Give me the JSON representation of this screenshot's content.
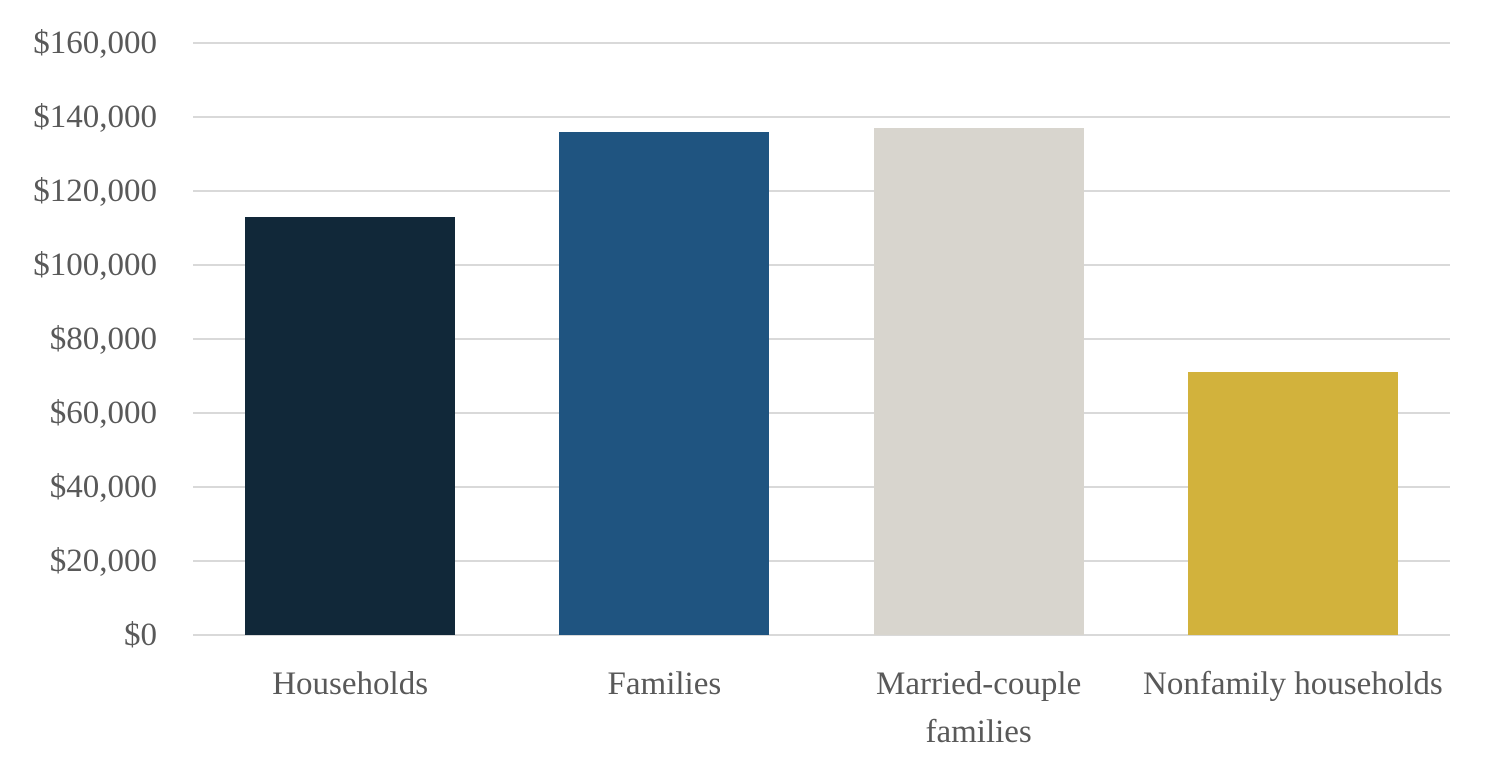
{
  "chart_data": {
    "type": "bar",
    "title": "",
    "xlabel": "",
    "ylabel": "",
    "categories": [
      "Households",
      "Families",
      "Married-couple families",
      "Nonfamily households"
    ],
    "values": [
      113000,
      136000,
      137000,
      71000
    ],
    "ylim": [
      0,
      160000
    ],
    "y_tick_step": 20000,
    "y_tick_labels": [
      "$0",
      "$20,000",
      "$40,000",
      "$60,000",
      "$80,000",
      "$100,000",
      "$120,000",
      "$140,000",
      "$160,000"
    ],
    "grid": true,
    "legend": false,
    "bar_colors": [
      "#112839",
      "#1F5480",
      "#D8D5CE",
      "#D2B23C"
    ],
    "colors": {
      "text": "#595959",
      "gridline": "#D9D9D9",
      "background": "#FFFFFF"
    }
  }
}
